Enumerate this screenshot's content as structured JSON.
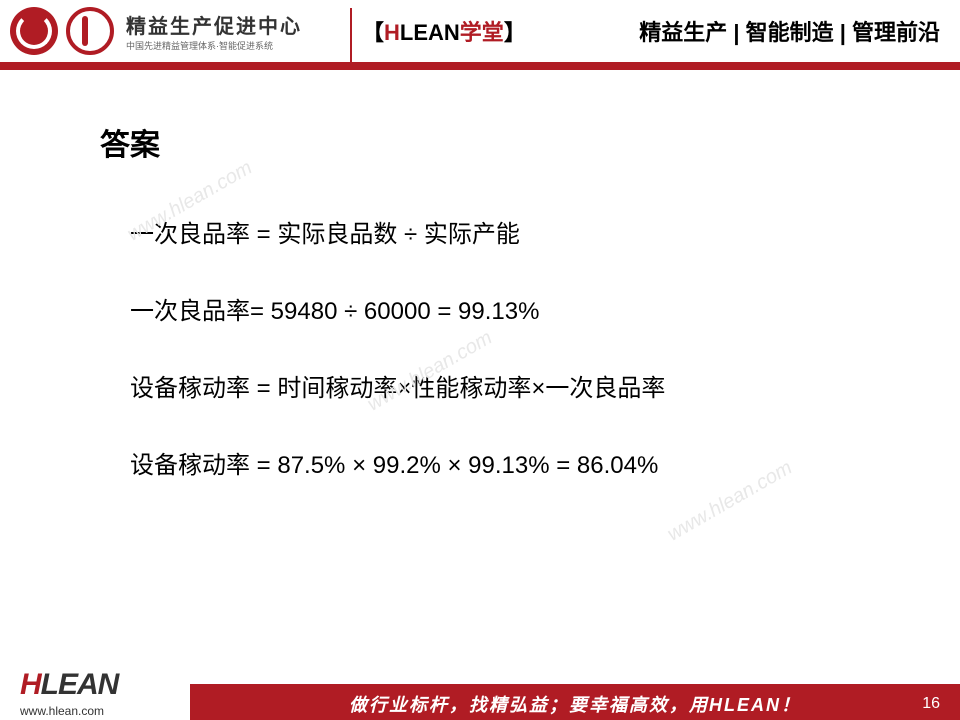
{
  "header": {
    "logo_main": "精益生产促进中心",
    "logo_sub": "中国先进精益管理体系·智能促进系统",
    "center_bracket_open": "【",
    "center_h": "H",
    "center_lean": "LEAN",
    "center_xuetang": "学堂",
    "center_bracket_close": "】",
    "right_text": "精益生产 | 智能制造 | 管理前沿"
  },
  "content": {
    "title": "答案",
    "line1": "一次良品率 = 实际良品数 ÷ 实际产能",
    "line2": "一次良品率= 59480 ÷ 60000 = 99.13%",
    "line3": "设备稼动率 = 时间稼动率×性能稼动率×一次良品率",
    "line4": "设备稼动率 = 87.5% × 99.2% × 99.13% = 86.04%"
  },
  "watermark": "www.hlean.com",
  "footer": {
    "logo_h": "H",
    "logo_lean": "LEAN",
    "url": "www.hlean.com",
    "slogan": "做行业标杆，找精弘益；要幸福高效，用HLEAN！",
    "page": "16"
  },
  "colors": {
    "brand_red": "#b01c24",
    "text_black": "#000000",
    "watermark_gray": "#e8e8e8",
    "background": "#ffffff"
  }
}
